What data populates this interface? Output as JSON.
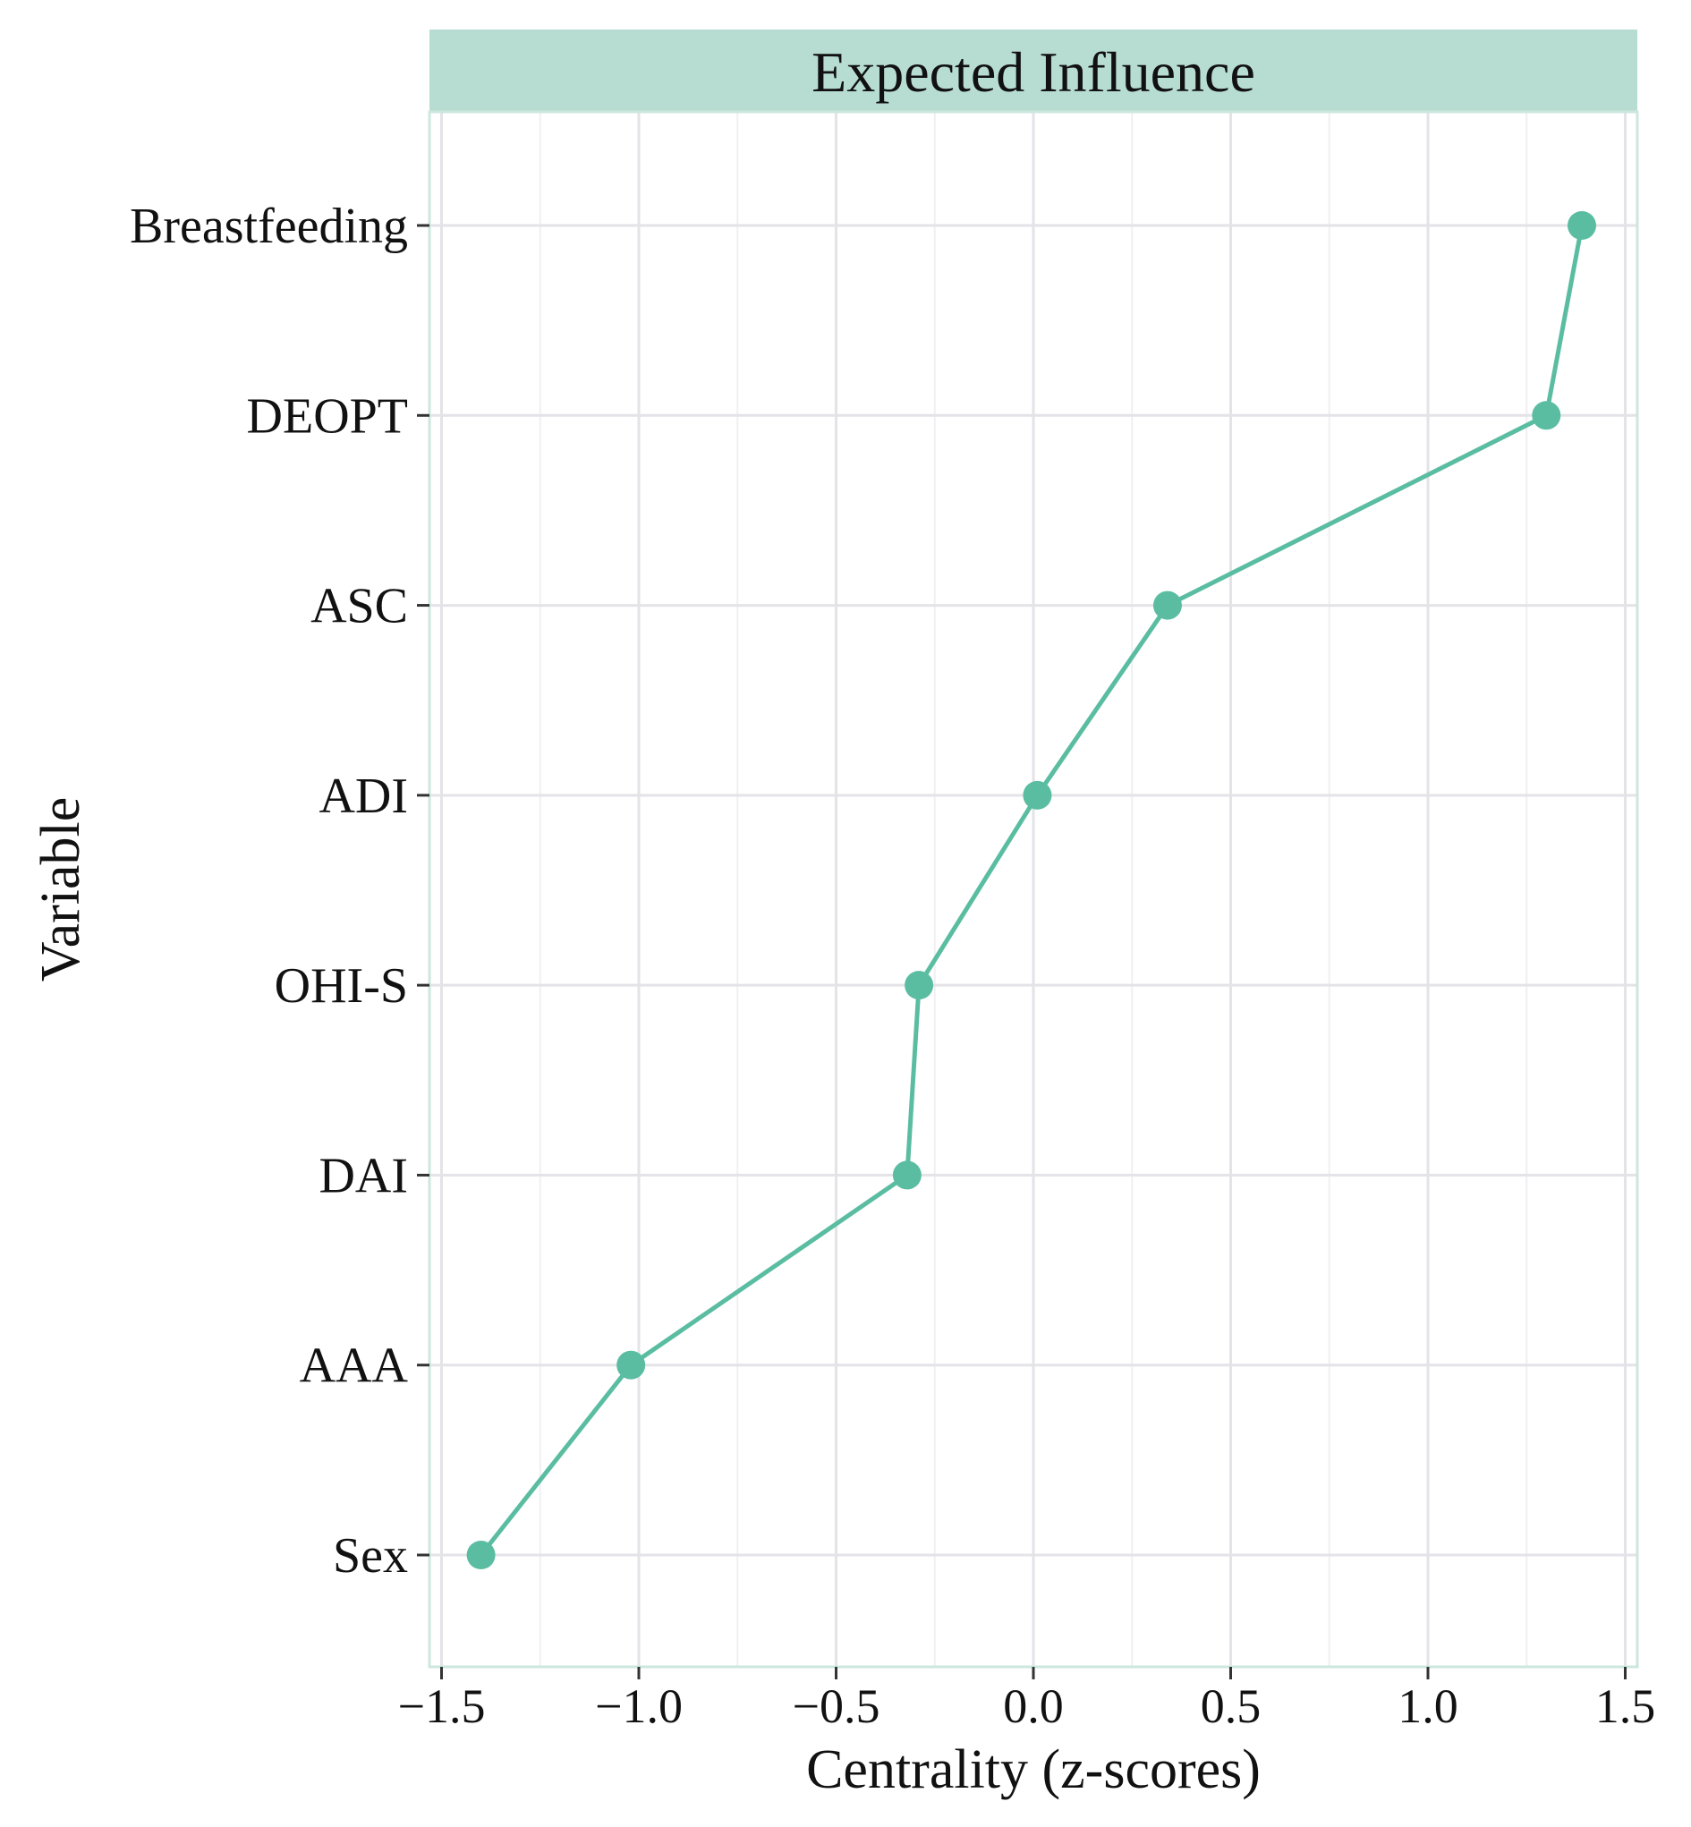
{
  "chart_data": {
    "type": "line",
    "title": "Expected Influence",
    "xlabel": "Centrality (z-scores)",
    "ylabel": "Variable",
    "categories": [
      "Breastfeeding",
      "DEOPT",
      "ASC",
      "ADI",
      "OHI-S",
      "DAI",
      "AAA",
      "Sex"
    ],
    "values": [
      1.39,
      1.3,
      0.34,
      0.01,
      -0.29,
      -0.32,
      -1.02,
      -1.4
    ],
    "xlim": [
      -1.5,
      1.5
    ],
    "x_major_ticks": [
      -1.5,
      -1.0,
      -0.5,
      0.0,
      0.5,
      1.0,
      1.5
    ],
    "x_tick_labels": [
      "−1.5",
      "−1.0",
      "−0.5",
      "0.0",
      "0.5",
      "1.0",
      "1.5"
    ],
    "x_minor_ticks": [
      -1.25,
      -0.75,
      -0.25,
      0.25,
      0.75,
      1.25
    ],
    "grid": true,
    "legend_position": "none",
    "series_marker": "circle"
  },
  "colors": {
    "background": "#ffffff",
    "strip_background": "#b7dcd2",
    "series": "#5abda1",
    "grid_major": "#e3e3e8",
    "grid_minor": "#f0f0f4",
    "panel_border": "#cde7de",
    "tick_mark": "#333333",
    "text": "#111111"
  }
}
